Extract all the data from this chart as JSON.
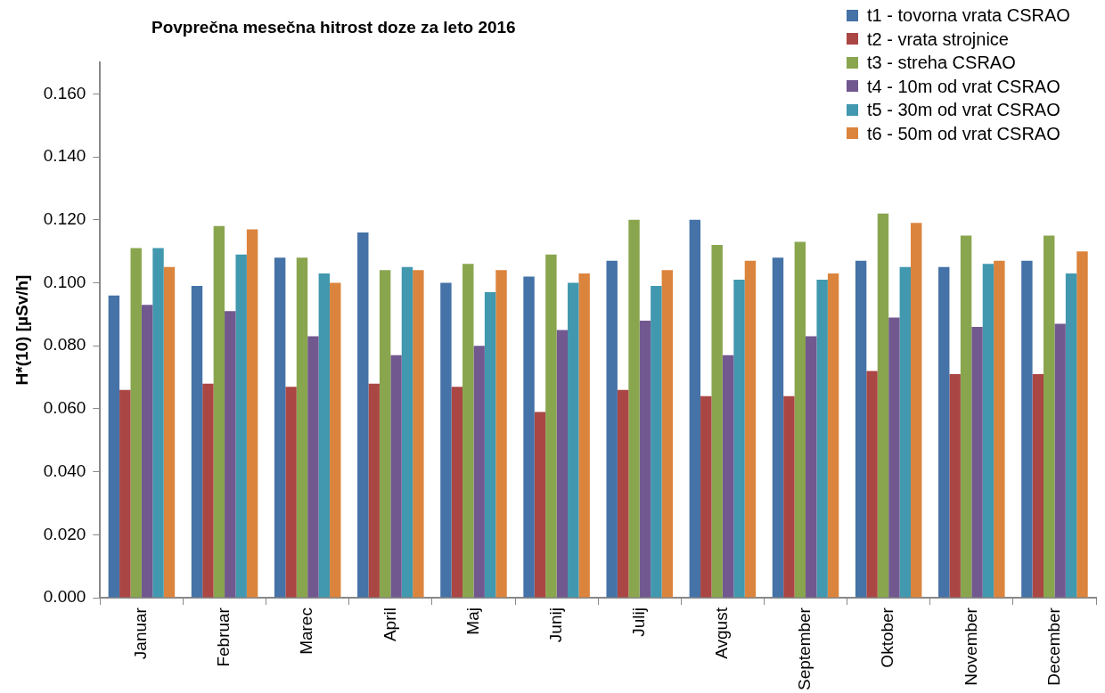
{
  "chart_data": {
    "type": "bar",
    "title": "Povprečna mesečna hitrost doze za leto 2016",
    "ylabel": "H*(10) [µSv/h]",
    "categories": [
      "Januar",
      "Februar",
      "Marec",
      "April",
      "Maj",
      "Junij",
      "Julij",
      "Avgust",
      "September",
      "Oktober",
      "November",
      "December"
    ],
    "series": [
      {
        "name": "t1 - tovorna vrata CSRAO",
        "color": "#4572a7",
        "values": [
          0.096,
          0.099,
          0.108,
          0.116,
          0.1,
          0.102,
          0.107,
          0.12,
          0.108,
          0.107,
          0.105,
          0.107
        ]
      },
      {
        "name": "t2 - vrata strojnice",
        "color": "#aa4643",
        "values": [
          0.066,
          0.068,
          0.067,
          0.068,
          0.067,
          0.059,
          0.066,
          0.064,
          0.064,
          0.072,
          0.071,
          0.071
        ]
      },
      {
        "name": "t3 - streha CSRAO",
        "color": "#89a54e",
        "values": [
          0.111,
          0.118,
          0.108,
          0.104,
          0.106,
          0.109,
          0.12,
          0.112,
          0.113,
          0.122,
          0.115,
          0.115
        ]
      },
      {
        "name": "t4 - 10m od vrat CSRAO",
        "color": "#71588f",
        "values": [
          0.093,
          0.091,
          0.083,
          0.077,
          0.08,
          0.085,
          0.088,
          0.077,
          0.083,
          0.089,
          0.086,
          0.087
        ]
      },
      {
        "name": "t5 - 30m od vrat CSRAO",
        "color": "#4198af",
        "values": [
          0.111,
          0.109,
          0.103,
          0.105,
          0.097,
          0.1,
          0.099,
          0.101,
          0.101,
          0.105,
          0.106,
          0.103
        ]
      },
      {
        "name": "t6 - 50m od vrat CSRAO",
        "color": "#db843d",
        "values": [
          0.105,
          0.117,
          0.1,
          0.104,
          0.104,
          0.103,
          0.104,
          0.107,
          0.103,
          0.119,
          0.107,
          0.11
        ]
      }
    ],
    "ylim": [
      0,
      0.17
    ],
    "yticks": [
      {
        "value": 0,
        "label": "0.000"
      },
      {
        "value": 0.02,
        "label": "0.020"
      },
      {
        "value": 0.04,
        "label": "0.040"
      },
      {
        "value": 0.06,
        "label": "0.060"
      },
      {
        "value": 0.08,
        "label": "0.080"
      },
      {
        "value": 0.1,
        "label": "0.100"
      },
      {
        "value": 0.12,
        "label": "0.120"
      },
      {
        "value": 0.14,
        "label": "0.140"
      },
      {
        "value": 0.16,
        "label": "0.160"
      }
    ],
    "grid": false,
    "legend": "top right"
  }
}
